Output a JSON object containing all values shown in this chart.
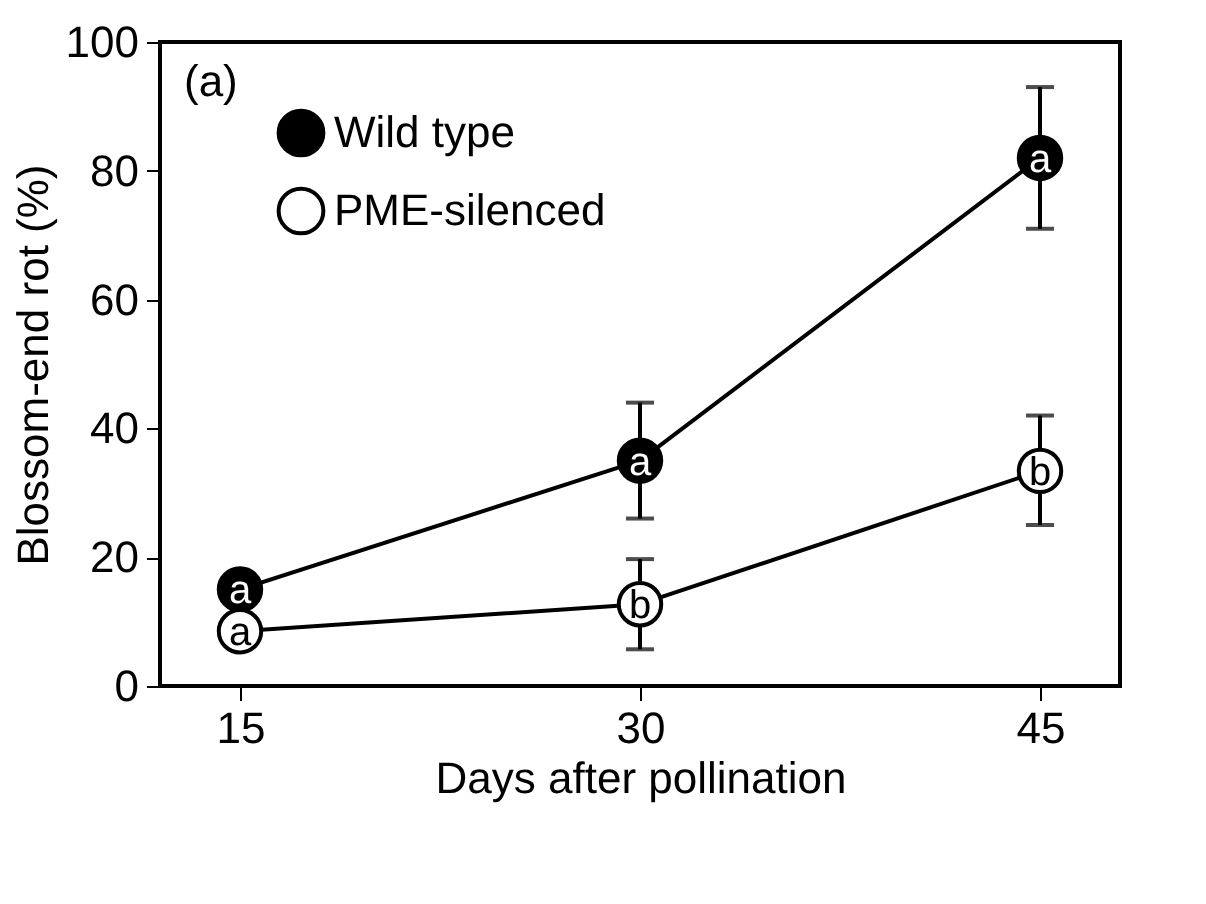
{
  "chart_data": {
    "type": "line",
    "xlabel": "Days after pollination",
    "ylabel": "Blossom-end rot (%)",
    "x": [
      15,
      30,
      45
    ],
    "xlim": [
      12,
      48
    ],
    "xticks": [
      15,
      30,
      45
    ],
    "ylim": [
      0,
      100
    ],
    "yticks": [
      0,
      20,
      40,
      60,
      80,
      100
    ],
    "series": [
      {
        "name": "Wild type",
        "color": "#000000",
        "values": [
          15,
          35,
          82
        ],
        "errors": [
          null,
          [
            26,
            44
          ],
          [
            71,
            93
          ]
        ]
      },
      {
        "name": "PME-silenced",
        "color": "#ffffff",
        "values": [
          8.5,
          12.7,
          33.4
        ],
        "errors": [
          null,
          [
            5.7,
            19.7
          ],
          [
            25,
            42
          ]
        ]
      }
    ],
    "annotations": [
      "(a)",
      {
        "text": "a",
        "x": 15,
        "y": 15
      },
      {
        "text": "a",
        "x": 30,
        "y": 35
      },
      {
        "text": "a",
        "x": 45,
        "y": 82
      },
      {
        "text": "a",
        "x": 15,
        "y": 8.5
      },
      {
        "text": "b",
        "x": 30,
        "y": 12.7
      },
      {
        "text": "b",
        "x": 45,
        "y": 33.4
      }
    ],
    "marker": "circle",
    "line_style": "solid",
    "legend": "top left",
    "grid": false
  }
}
